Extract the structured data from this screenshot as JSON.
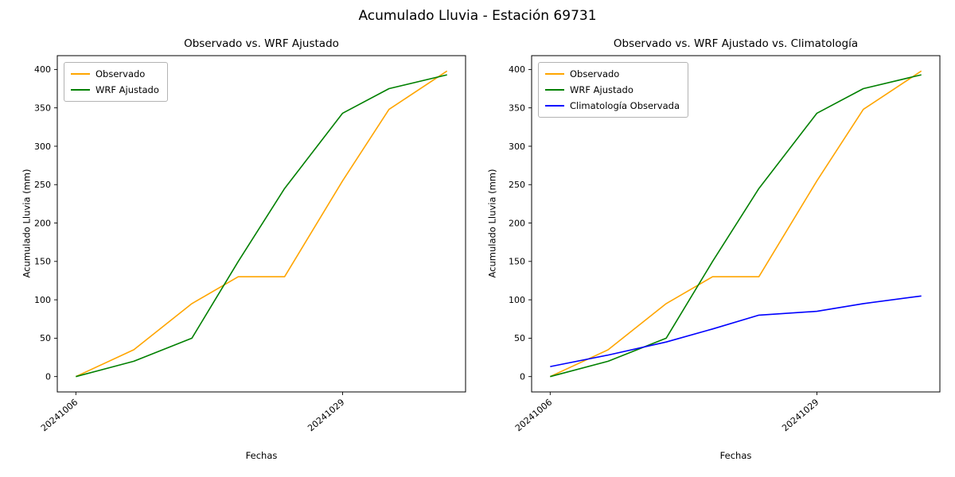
{
  "figure": {
    "title": "Acumulado Lluvia - Estación 69731"
  },
  "chart_data": [
    {
      "type": "line",
      "title": "Observado vs. WRF Ajustado",
      "xlabel": "Fechas",
      "ylabel": "Acumulado Lluvia (mm)",
      "x_dates": [
        "20241006",
        "20241011",
        "20241016",
        "20241020",
        "20241024",
        "20241029",
        "20241102",
        "20241107"
      ],
      "xtick_labels": [
        "20241006",
        "20241029"
      ],
      "yticks": [
        0,
        50,
        100,
        150,
        200,
        250,
        300,
        350,
        400
      ],
      "ylim": [
        -20,
        418
      ],
      "grid": false,
      "legend_position": "upper left",
      "series": [
        {
          "name": "Observado",
          "color": "#ffa500",
          "values": [
            0,
            35,
            95,
            130,
            130,
            255,
            348,
            398
          ]
        },
        {
          "name": "WRF Ajustado",
          "color": "#008000",
          "values": [
            0,
            20,
            50,
            150,
            245,
            343,
            375,
            393
          ]
        }
      ]
    },
    {
      "type": "line",
      "title": "Observado vs. WRF Ajustado vs. Climatología",
      "xlabel": "Fechas",
      "ylabel": "Acumulado Lluvia (mm)",
      "x_dates": [
        "20241006",
        "20241011",
        "20241016",
        "20241020",
        "20241024",
        "20241029",
        "20241102",
        "20241107"
      ],
      "xtick_labels": [
        "20241006",
        "20241029"
      ],
      "yticks": [
        0,
        50,
        100,
        150,
        200,
        250,
        300,
        350,
        400
      ],
      "ylim": [
        -20,
        418
      ],
      "grid": false,
      "legend_position": "upper left",
      "series": [
        {
          "name": "Observado",
          "color": "#ffa500",
          "values": [
            0,
            35,
            95,
            130,
            130,
            255,
            348,
            398
          ]
        },
        {
          "name": "WRF Ajustado",
          "color": "#008000",
          "values": [
            0,
            20,
            50,
            150,
            245,
            343,
            375,
            393
          ]
        },
        {
          "name": "Climatología Observada",
          "color": "#0000ff",
          "values": [
            13,
            28,
            45,
            62,
            80,
            85,
            95,
            105
          ]
        }
      ]
    }
  ]
}
